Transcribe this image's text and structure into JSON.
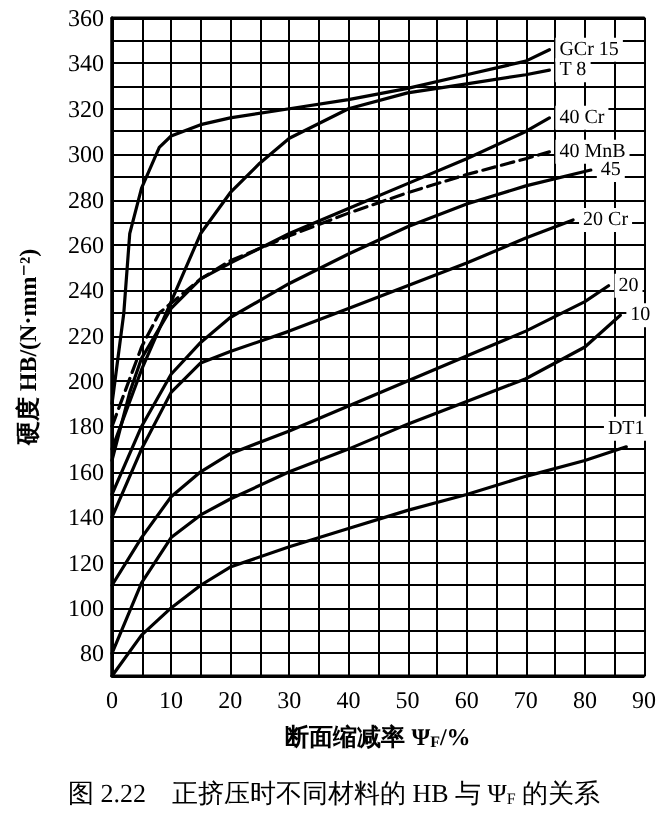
{
  "chart_data": {
    "type": "line",
    "title": "图 2.22　正挤压时不同材料的 HB 与 Ψ$_{F}$ 的关系",
    "xlabel": "断面缩减率 Ψ$_{F}$/%",
    "ylabel": "硬度 HB/(N·mm⁻²)",
    "xlim": [
      0,
      90
    ],
    "xticks": [
      0,
      10,
      20,
      30,
      40,
      50,
      60,
      70,
      80,
      90
    ],
    "ylim": [
      70,
      360
    ],
    "yticks": [
      80,
      100,
      120,
      140,
      160,
      180,
      200,
      220,
      240,
      260,
      280,
      300,
      320,
      340,
      360
    ],
    "grid": true,
    "legend": false,
    "marker": "none",
    "line_style": "solid",
    "series": [
      {
        "name": "GCr 15",
        "color": "#000000",
        "x": [
          0,
          2,
          3,
          5,
          8,
          10,
          15,
          20,
          30,
          40,
          50,
          60,
          70,
          74
        ],
        "values": [
          190,
          230,
          265,
          285,
          303,
          308,
          313,
          316,
          320,
          324,
          329,
          335,
          341,
          346
        ]
      },
      {
        "name": "T 8",
        "color": "#000000",
        "x": [
          0,
          5,
          10,
          15,
          20,
          25,
          30,
          40,
          50,
          60,
          70,
          74
        ],
        "values": [
          170,
          205,
          235,
          265,
          283,
          296,
          307,
          320,
          327,
          331,
          335,
          337
        ]
      },
      {
        "name": "40 Cr",
        "color": "#000000",
        "x": [
          0,
          3,
          5,
          10,
          15,
          20,
          30,
          40,
          50,
          60,
          70,
          74
        ],
        "values": [
          165,
          195,
          210,
          232,
          245,
          252,
          265,
          276,
          287,
          298,
          310,
          316
        ]
      },
      {
        "name": "40 MnB",
        "color": "#000000",
        "line_style": "dashed",
        "x": [
          0,
          5,
          8,
          15,
          20,
          30,
          40,
          50,
          60,
          70,
          74
        ],
        "values": [
          180,
          215,
          230,
          245,
          253,
          264,
          274,
          283,
          291,
          298,
          301
        ]
      },
      {
        "name": "45",
        "color": "#000000",
        "x": [
          0,
          5,
          10,
          15,
          20,
          30,
          40,
          50,
          60,
          70,
          81
        ],
        "values": [
          150,
          180,
          203,
          217,
          228,
          243,
          256,
          268,
          278,
          286,
          293
        ]
      },
      {
        "name": "20 Cr",
        "color": "#000000",
        "x": [
          0,
          5,
          10,
          15,
          20,
          30,
          40,
          50,
          60,
          70,
          78
        ],
        "values": [
          140,
          170,
          195,
          208,
          213,
          222,
          232,
          242,
          252,
          263,
          271
        ]
      },
      {
        "name": "20",
        "color": "#000000",
        "x": [
          0,
          5,
          10,
          15,
          20,
          30,
          40,
          50,
          60,
          70,
          80,
          84
        ],
        "values": [
          110,
          131,
          149,
          160,
          168,
          178,
          189,
          200,
          211,
          222,
          235,
          242
        ]
      },
      {
        "name": "10",
        "color": "#000000",
        "x": [
          0,
          5,
          10,
          15,
          20,
          30,
          40,
          50,
          60,
          70,
          80,
          86
        ],
        "values": [
          80,
          111,
          131,
          141,
          148,
          160,
          170,
          181,
          191,
          201,
          215,
          229
        ]
      },
      {
        "name": "DT1",
        "color": "#000000",
        "x": [
          0,
          5,
          10,
          15,
          20,
          30,
          40,
          50,
          60,
          70,
          80,
          87
        ],
        "values": [
          70,
          88,
          100,
          110,
          118,
          127,
          135,
          143,
          150,
          158,
          165,
          171
        ]
      }
    ]
  }
}
